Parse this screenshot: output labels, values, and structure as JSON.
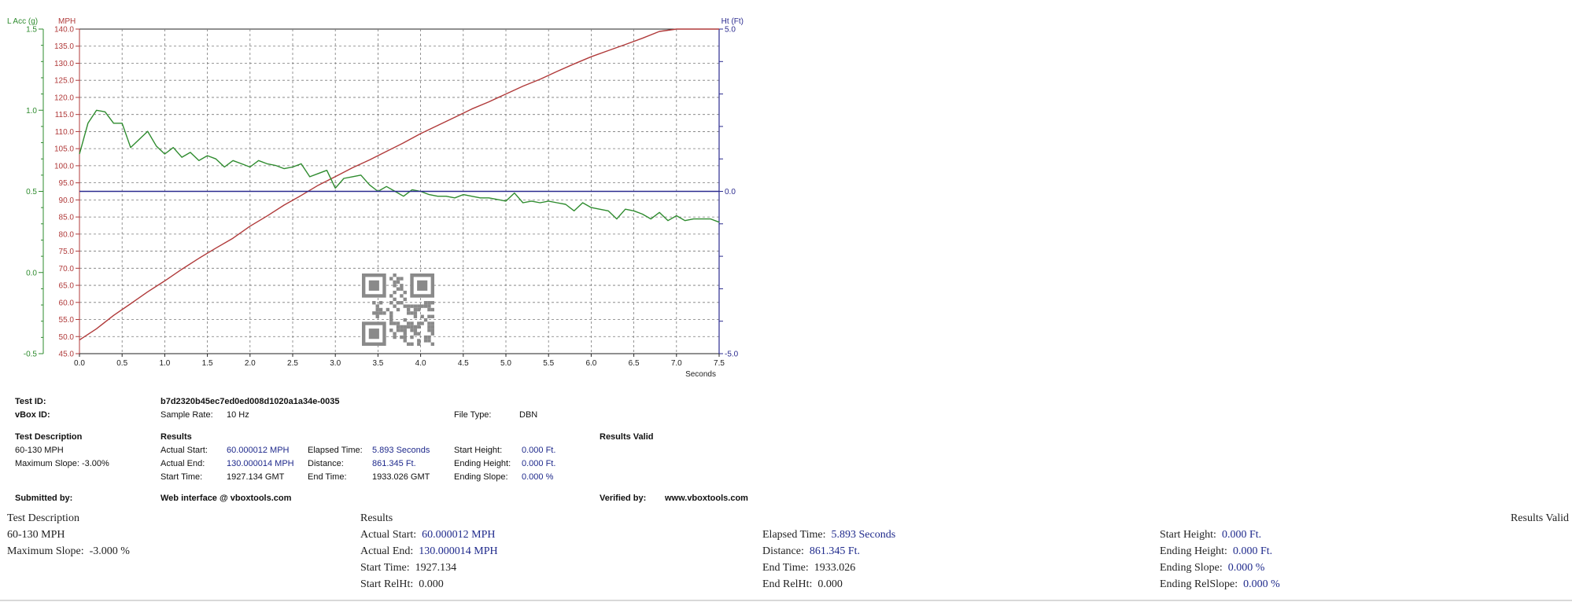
{
  "chart_data": {
    "type": "line",
    "axes": {
      "left_outer": {
        "label": "L Acc (g)",
        "range": [
          -0.5,
          1.5
        ],
        "ticks": [
          "1.5",
          "1.0",
          "0.5",
          "0.0",
          "-0.5"
        ],
        "tick_values": [
          1.5,
          1.0,
          0.5,
          0.0,
          -0.5
        ],
        "color": "#2e8b2e"
      },
      "left_inner": {
        "label": "MPH",
        "range": [
          45,
          140
        ],
        "ticks": [
          "140.0",
          "135.0",
          "130.0",
          "125.0",
          "120.0",
          "115.0",
          "110.0",
          "105.0",
          "100.0",
          "95.0",
          "90.0",
          "85.0",
          "80.0",
          "75.0",
          "70.0",
          "65.0",
          "60.0",
          "55.0",
          "50.0",
          "45.0"
        ],
        "tick_values": [
          140,
          135,
          130,
          125,
          120,
          115,
          110,
          105,
          100,
          95,
          90,
          85,
          80,
          75,
          70,
          65,
          60,
          55,
          50,
          45
        ],
        "color": "#b03a3a"
      },
      "right": {
        "label": "Ht (Ft)",
        "range": [
          -5,
          5
        ],
        "ticks": [
          "5.0",
          "0.0",
          "-5.0"
        ],
        "tick_values": [
          5,
          0,
          -5
        ],
        "color": "#2b2b8f"
      },
      "x": {
        "label": "Seconds",
        "range": [
          0,
          7.5
        ],
        "ticks": [
          "0.0",
          "0.5",
          "1.0",
          "1.5",
          "2.0",
          "2.5",
          "3.0",
          "3.5",
          "4.0",
          "4.5",
          "5.0",
          "5.5",
          "6.0",
          "6.5",
          "7.0",
          "7.5"
        ],
        "tick_values": [
          0,
          0.5,
          1,
          1.5,
          2,
          2.5,
          3,
          3.5,
          4,
          4.5,
          5,
          5.5,
          6,
          6.5,
          7,
          7.5
        ]
      }
    },
    "grid": true,
    "series": [
      {
        "axis": "left_inner",
        "color": "#b03a3a",
        "x": [
          0,
          0.2,
          0.4,
          0.6,
          0.8,
          1.0,
          1.2,
          1.4,
          1.6,
          1.8,
          2.0,
          2.2,
          2.4,
          2.6,
          2.8,
          3.0,
          3.2,
          3.4,
          3.6,
          3.8,
          4.0,
          4.2,
          4.4,
          4.6,
          4.8,
          5.0,
          5.2,
          5.4,
          5.6,
          5.8,
          6.0,
          6.2,
          6.4,
          6.6,
          6.8,
          7.0,
          7.2,
          7.5
        ],
        "y": [
          49.0,
          52.3,
          56.2,
          59.6,
          63.1,
          66.3,
          69.7,
          72.9,
          75.9,
          78.8,
          82.3,
          85.3,
          88.5,
          91.3,
          94.3,
          96.8,
          99.4,
          101.7,
          104.2,
          106.7,
          109.4,
          111.8,
          114.2,
          116.6,
          118.7,
          121.0,
          123.3,
          125.3,
          127.6,
          129.8,
          131.9,
          133.7,
          135.5,
          137.3,
          139.3,
          140.9,
          142.5,
          145.0
        ]
      },
      {
        "axis": "left_outer",
        "color": "#2e8b2e",
        "x": [
          0,
          0.1,
          0.2,
          0.3,
          0.4,
          0.5,
          0.6,
          0.7,
          0.8,
          0.9,
          1.0,
          1.1,
          1.2,
          1.3,
          1.4,
          1.5,
          1.6,
          1.7,
          1.8,
          1.9,
          2.0,
          2.1,
          2.2,
          2.3,
          2.4,
          2.5,
          2.6,
          2.7,
          2.8,
          2.9,
          3.0,
          3.1,
          3.2,
          3.3,
          3.4,
          3.5,
          3.6,
          3.7,
          3.8,
          3.9,
          4.0,
          4.1,
          4.2,
          4.3,
          4.4,
          4.5,
          4.6,
          4.7,
          4.8,
          4.9,
          5.0,
          5.1,
          5.2,
          5.3,
          5.4,
          5.5,
          5.6,
          5.7,
          5.8,
          5.9,
          6.0,
          6.1,
          6.2,
          6.3,
          6.4,
          6.5,
          6.6,
          6.7,
          6.8,
          6.9,
          7.0,
          7.1,
          7.2,
          7.3,
          7.4,
          7.5
        ],
        "y": [
          0.73,
          0.92,
          1.0,
          0.99,
          0.92,
          0.92,
          0.77,
          0.82,
          0.87,
          0.78,
          0.73,
          0.77,
          0.71,
          0.74,
          0.69,
          0.72,
          0.7,
          0.65,
          0.69,
          0.67,
          0.65,
          0.69,
          0.67,
          0.66,
          0.64,
          0.65,
          0.67,
          0.59,
          0.61,
          0.63,
          0.52,
          0.58,
          0.59,
          0.6,
          0.54,
          0.5,
          0.53,
          0.5,
          0.47,
          0.51,
          0.5,
          0.48,
          0.47,
          0.47,
          0.46,
          0.48,
          0.47,
          0.46,
          0.46,
          0.45,
          0.44,
          0.49,
          0.43,
          0.44,
          0.43,
          0.44,
          0.43,
          0.42,
          0.38,
          0.43,
          0.4,
          0.39,
          0.38,
          0.33,
          0.39,
          0.38,
          0.36,
          0.33,
          0.37,
          0.32,
          0.35,
          0.32,
          0.33,
          0.33,
          0.33,
          0.31
        ]
      },
      {
        "axis": "right",
        "color": "#2b2b8f",
        "x": [
          0,
          7.5
        ],
        "y": [
          0,
          0
        ]
      }
    ]
  },
  "info_panel": {
    "test_id_label": "Test ID:",
    "test_id": "b7d2320b45ec7ed0ed008d1020a1a34e-0035",
    "vbox_id_label": "vBox ID:",
    "sample_rate_label": "Sample Rate:",
    "sample_rate": "10 Hz",
    "file_type_label": "File Type:",
    "file_type": "DBN",
    "test_description_label": "Test Description",
    "test_description": "60-130 MPH",
    "max_slope": "Maximum Slope:  -3.00%",
    "results_label": "Results",
    "results_valid": "Results Valid",
    "actual_start_label": "Actual Start:",
    "actual_start": "60.000012 MPH",
    "actual_end_label": "Actual End:",
    "actual_end": "130.000014 MPH",
    "start_time_label": "Start Time:",
    "start_time": "1927.134 GMT",
    "elapsed_time_label": "Elapsed Time:",
    "elapsed_time": "5.893 Seconds",
    "distance_label": "Distance:",
    "distance": "861.345 Ft.",
    "end_time_label": "End Time:",
    "end_time": "1933.026 GMT",
    "start_height_label": "Start Height:",
    "start_height": "0.000 Ft.",
    "ending_height_label": "Ending Height:",
    "ending_height": "0.000 Ft.",
    "ending_slope_label": "Ending Slope:",
    "ending_slope": "0.000 %",
    "submitted_by_label": "Submitted by:",
    "submitted_by": "Web interface @ vboxtools.com",
    "verified_by_label": "Verified by:",
    "verified_by": "www.vboxtools.com"
  },
  "lower_section": {
    "test_description_label": "Test Description",
    "test_description": "60-130 MPH",
    "max_slope_label": "Maximum Slope:",
    "max_slope": "-3.000 %",
    "results_label": "Results",
    "results_valid": "Results Valid",
    "actual_start_label": "Actual Start:",
    "actual_start": "60.000012 MPH",
    "actual_end_label": "Actual End:",
    "actual_end": "130.000014 MPH",
    "start_time_label": "Start Time:",
    "start_time": "1927.134",
    "start_relht_label": "Start RelHt:",
    "start_relht": "0.000",
    "elapsed_time_label": "Elapsed Time:",
    "elapsed_time": "5.893 Seconds",
    "distance_label": "Distance:",
    "distance": "861.345 Ft.",
    "end_time_label": "End Time:",
    "end_time": "1933.026",
    "end_relht_label": "End RelHt:",
    "end_relht": "0.000",
    "start_height_label": "Start Height:",
    "start_height": "0.000 Ft.",
    "ending_height_label": "Ending Height:",
    "ending_height": "0.000 Ft.",
    "ending_slope_label": "Ending Slope:",
    "ending_slope": "0.000 %",
    "ending_relslope_label": "Ending RelSlope:",
    "ending_relslope": "0.000 %"
  },
  "qr_code": {
    "icon": "qr-code-icon",
    "color": "#8a8a8a"
  }
}
